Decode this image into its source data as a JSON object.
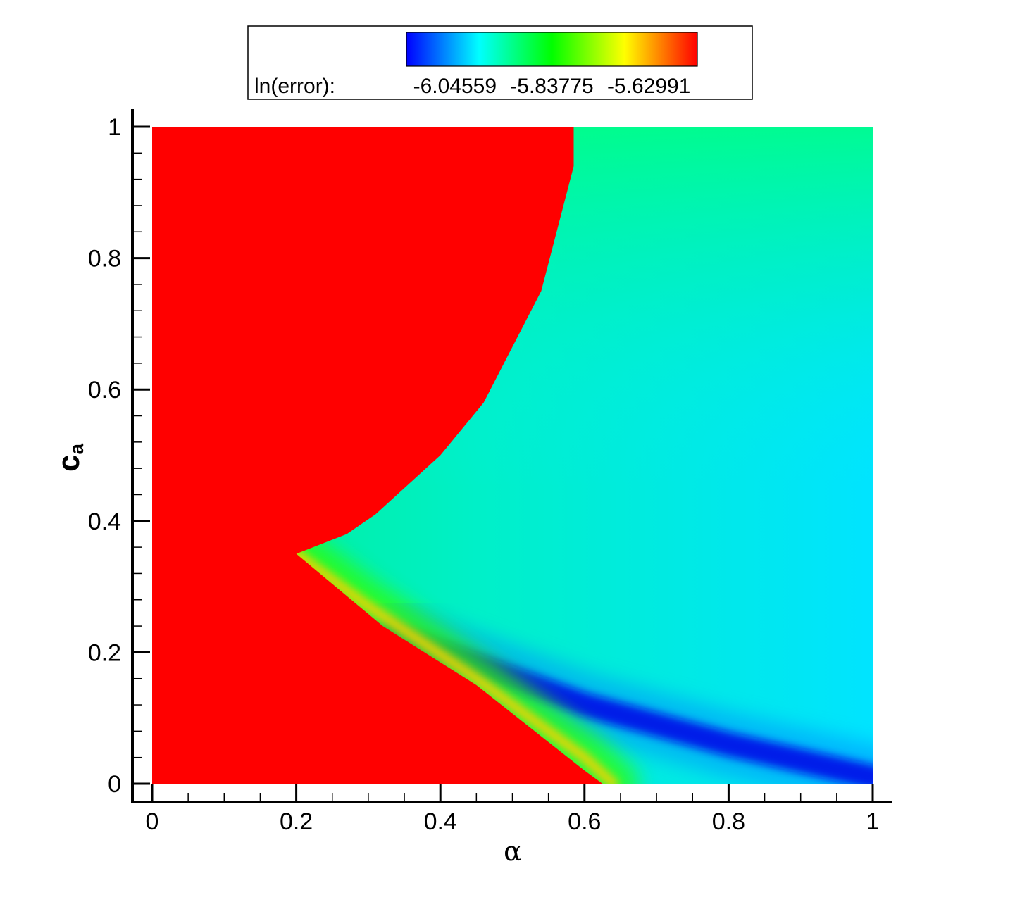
{
  "chart_data": {
    "type": "heatmap",
    "xlabel": "α",
    "ylabel": {
      "main": "c",
      "sub": "a"
    },
    "xlim": [
      0,
      1
    ],
    "ylim": [
      0,
      1
    ],
    "x_ticks": [
      "0",
      "0.2",
      "0.4",
      "0.6",
      "0.8",
      "1"
    ],
    "y_ticks": [
      "0",
      "0.2",
      "0.4",
      "0.6",
      "0.8",
      "1"
    ],
    "colorbar": {
      "label": "ln(error):",
      "tick_labels": [
        "-6.04559",
        "-5.83775",
        "-5.62991"
      ],
      "range": [
        -6.1495,
        -5.526
      ],
      "colormap": [
        "#0000ff",
        "#00ffff",
        "#00ff00",
        "#ffff00",
        "#ff0000"
      ]
    },
    "regions": [
      {
        "name": "saturated-high-error",
        "value_level": "max",
        "boundary": [
          [
            0,
            1
          ],
          [
            0.585,
            1
          ],
          [
            0.585,
            0.94
          ],
          [
            0.54,
            0.75
          ],
          [
            0.46,
            0.58
          ],
          [
            0.4,
            0.5
          ],
          [
            0.31,
            0.41
          ],
          [
            0.27,
            0.38
          ],
          [
            0.2,
            0.35
          ],
          [
            0.32,
            0.24
          ],
          [
            0.45,
            0.15
          ],
          [
            0.6,
            0.02
          ],
          [
            0.625,
            0
          ],
          [
            0,
            0
          ]
        ]
      }
    ],
    "features": [
      {
        "name": "low-error-band",
        "level": "min",
        "path": [
          [
            0.33,
            0.23
          ],
          [
            0.4,
            0.2
          ],
          [
            0.5,
            0.16
          ],
          [
            0.6,
            0.12
          ],
          [
            0.7,
            0.09
          ],
          [
            0.8,
            0.06
          ],
          [
            0.9,
            0.035
          ],
          [
            1.0,
            0.01
          ]
        ]
      },
      {
        "name": "transition-ridge",
        "level": "high",
        "path": [
          [
            0.2,
            0.35
          ],
          [
            0.3,
            0.27
          ],
          [
            0.45,
            0.16
          ],
          [
            0.6,
            0.04
          ],
          [
            0.64,
            0
          ]
        ]
      }
    ]
  }
}
